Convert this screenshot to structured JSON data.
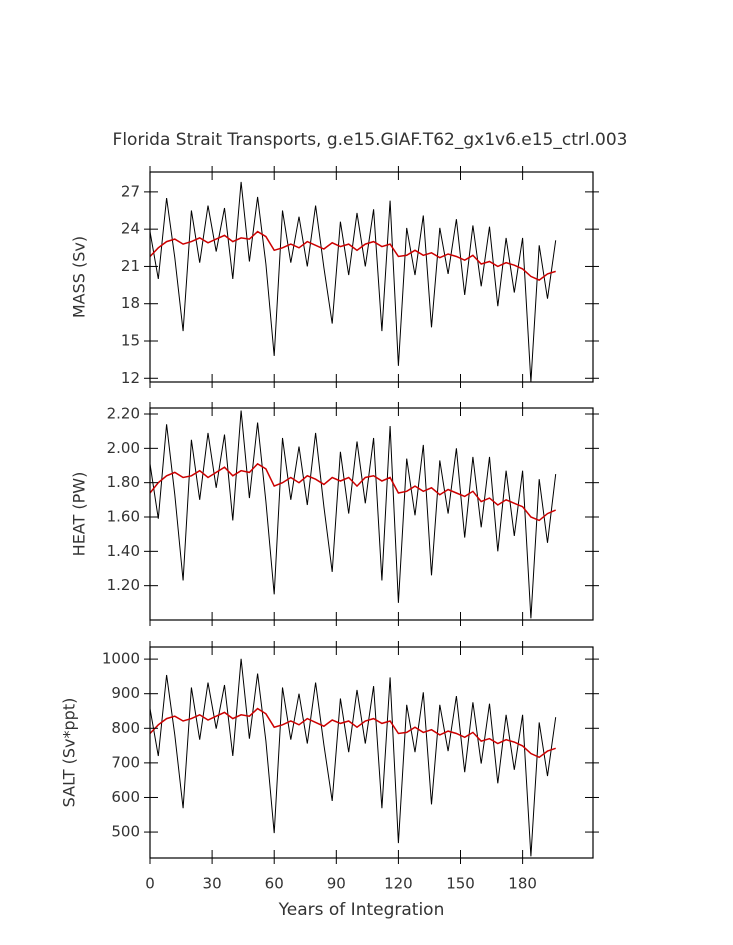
{
  "chart_data": [
    {
      "type": "line",
      "title": "Florida Strait Transports, g.e15.GIAF.T62_gx1v6.e15_ctrl.003",
      "ylabel": "MASS (Sv)",
      "x": [
        0,
        4,
        8,
        12,
        16,
        20,
        24,
        28,
        32,
        36,
        40,
        44,
        48,
        52,
        56,
        60,
        64,
        68,
        72,
        76,
        80,
        84,
        88,
        92,
        96,
        100,
        104,
        108,
        112,
        116,
        120,
        124,
        128,
        132,
        136,
        140,
        144,
        148,
        152,
        156,
        160,
        164,
        168,
        172,
        176,
        180,
        184,
        188,
        192,
        196
      ],
      "xlim": [
        0,
        214
      ],
      "xticks": [
        0,
        30,
        60,
        90,
        120,
        150,
        180
      ],
      "ylim": [
        11.7,
        28.6
      ],
      "yticks": [
        12,
        15,
        18,
        21,
        24,
        27
      ],
      "series": [
        {
          "color": "#000000",
          "values": [
            23.8,
            20.0,
            26.5,
            21.7,
            15.8,
            25.5,
            21.3,
            25.9,
            22.2,
            25.7,
            20.0,
            27.8,
            21.4,
            26.6,
            21.2,
            13.8,
            25.5,
            21.3,
            25.0,
            21.0,
            25.9,
            20.9,
            16.4,
            24.6,
            20.3,
            25.3,
            21.0,
            25.6,
            15.8,
            26.3,
            13.0,
            24.1,
            20.3,
            25.1,
            16.1,
            24.1,
            20.4,
            24.8,
            18.7,
            24.3,
            19.4,
            24.2,
            17.8,
            23.3,
            18.9,
            23.3,
            11.7,
            22.7,
            18.4,
            23.1
          ]
        },
        {
          "color": "#cc0000",
          "values": [
            21.8,
            22.5,
            23.0,
            23.2,
            22.8,
            23.0,
            23.3,
            22.9,
            23.2,
            23.5,
            23.0,
            23.3,
            23.2,
            23.8,
            23.4,
            22.3,
            22.5,
            22.8,
            22.5,
            23.0,
            22.7,
            22.4,
            22.9,
            22.6,
            22.8,
            22.3,
            22.8,
            23.0,
            22.6,
            22.8,
            21.8,
            21.9,
            22.3,
            21.9,
            22.1,
            21.7,
            22.0,
            21.8,
            21.5,
            21.9,
            21.2,
            21.4,
            21.0,
            21.3,
            21.1,
            20.8,
            20.2,
            19.9,
            20.4,
            20.6
          ]
        }
      ]
    },
    {
      "type": "line",
      "ylabel": "HEAT (PW)",
      "x": [
        0,
        4,
        8,
        12,
        16,
        20,
        24,
        28,
        32,
        36,
        40,
        44,
        48,
        52,
        56,
        60,
        64,
        68,
        72,
        76,
        80,
        84,
        88,
        92,
        96,
        100,
        104,
        108,
        112,
        116,
        120,
        124,
        128,
        132,
        136,
        140,
        144,
        148,
        152,
        156,
        160,
        164,
        168,
        172,
        176,
        180,
        184,
        188,
        192,
        196
      ],
      "xlim": [
        0,
        214
      ],
      "xticks": [
        0,
        30,
        60,
        90,
        120,
        150,
        180
      ],
      "ylim": [
        1.0,
        2.235
      ],
      "yticks": [
        {
          "value": 1.2,
          "label": "1.20"
        },
        {
          "value": 1.4,
          "label": "1.40"
        },
        {
          "value": 1.6,
          "label": "1.60"
        },
        {
          "value": 1.8,
          "label": "1.80"
        },
        {
          "value": 2.0,
          "label": "2.00"
        },
        {
          "value": 2.2,
          "label": "2.20"
        }
      ],
      "series": [
        {
          "color": "#000000",
          "values": [
            1.91,
            1.59,
            2.14,
            1.73,
            1.23,
            2.05,
            1.7,
            2.09,
            1.77,
            2.08,
            1.58,
            2.22,
            1.71,
            2.15,
            1.69,
            1.15,
            2.06,
            1.7,
            2.01,
            1.67,
            2.09,
            1.66,
            1.28,
            1.98,
            1.62,
            2.04,
            1.68,
            2.06,
            1.23,
            2.13,
            1.1,
            1.94,
            1.61,
            2.02,
            1.26,
            1.93,
            1.62,
            2.0,
            1.48,
            1.95,
            1.54,
            1.95,
            1.4,
            1.87,
            1.49,
            1.87,
            1.01,
            1.82,
            1.45,
            1.85
          ]
        },
        {
          "color": "#cc0000",
          "values": [
            1.74,
            1.8,
            1.84,
            1.86,
            1.83,
            1.84,
            1.87,
            1.83,
            1.86,
            1.89,
            1.84,
            1.87,
            1.86,
            1.91,
            1.88,
            1.78,
            1.8,
            1.83,
            1.8,
            1.84,
            1.82,
            1.79,
            1.83,
            1.81,
            1.83,
            1.78,
            1.83,
            1.84,
            1.81,
            1.83,
            1.74,
            1.75,
            1.78,
            1.75,
            1.77,
            1.73,
            1.76,
            1.74,
            1.72,
            1.75,
            1.69,
            1.71,
            1.67,
            1.7,
            1.68,
            1.66,
            1.6,
            1.58,
            1.62,
            1.64
          ]
        }
      ]
    },
    {
      "type": "line",
      "ylabel": "SALT (Sv*ppt)",
      "xlabel": "Years of Integration",
      "x": [
        0,
        4,
        8,
        12,
        16,
        20,
        24,
        28,
        32,
        36,
        40,
        44,
        48,
        52,
        56,
        60,
        64,
        68,
        72,
        76,
        80,
        84,
        88,
        92,
        96,
        100,
        104,
        108,
        112,
        116,
        120,
        124,
        128,
        132,
        136,
        140,
        144,
        148,
        152,
        156,
        160,
        164,
        168,
        172,
        176,
        180,
        184,
        188,
        192,
        196
      ],
      "xlim": [
        0,
        214
      ],
      "xticks": [
        0,
        30,
        60,
        90,
        120,
        150,
        180
      ],
      "ylim": [
        425,
        1035
      ],
      "yticks": [
        500,
        600,
        700,
        800,
        900,
        1000
      ],
      "series": [
        {
          "color": "#000000",
          "values": [
            857,
            720,
            954,
            781,
            569,
            918,
            767,
            932,
            799,
            925,
            720,
            1001,
            770,
            958,
            763,
            497,
            918,
            767,
            900,
            756,
            932,
            752,
            590,
            886,
            731,
            911,
            756,
            922,
            569,
            947,
            468,
            868,
            731,
            904,
            580,
            868,
            734,
            893,
            673,
            875,
            698,
            871,
            641,
            839,
            680,
            839,
            430,
            817,
            662,
            832
          ]
        },
        {
          "color": "#cc0000",
          "values": [
            785,
            810,
            828,
            835,
            821,
            828,
            839,
            824,
            835,
            846,
            828,
            839,
            835,
            857,
            842,
            803,
            810,
            821,
            810,
            828,
            817,
            806,
            824,
            814,
            821,
            803,
            821,
            828,
            814,
            821,
            785,
            788,
            803,
            788,
            796,
            781,
            792,
            785,
            774,
            788,
            763,
            770,
            756,
            767,
            760,
            749,
            727,
            716,
            734,
            742
          ]
        }
      ]
    }
  ]
}
